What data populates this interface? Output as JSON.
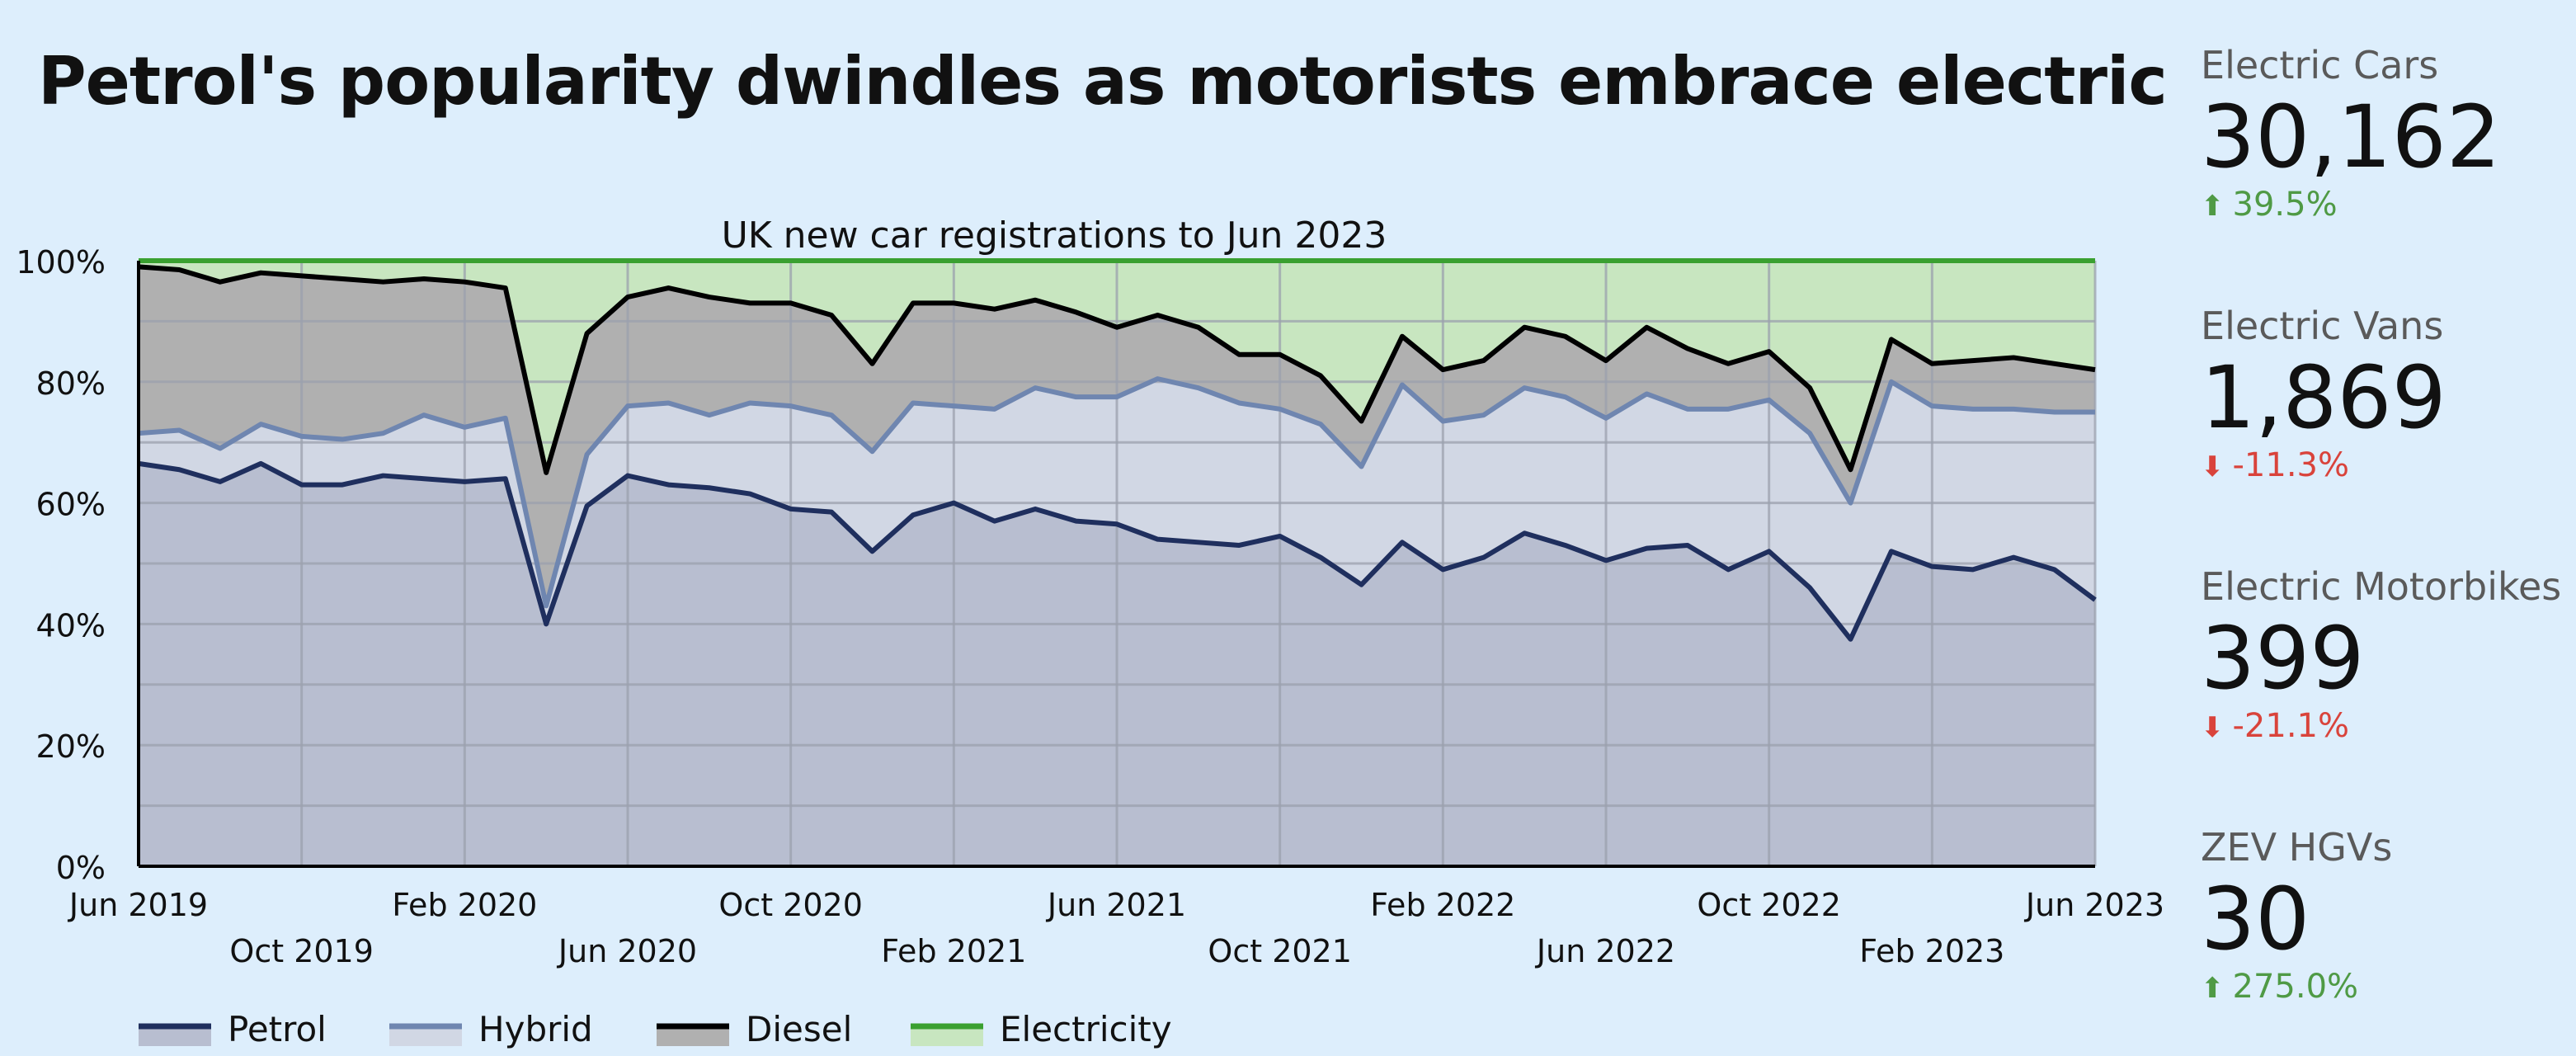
{
  "page": {
    "title": "Petrol's popularity dwindles as motorists embrace electric"
  },
  "colors": {
    "background": "#ddeefc",
    "petrol_line": "#1f2f5e",
    "petrol_fill": "#b8bed0",
    "hybrid_line": "#6f86b0",
    "hybrid_fill": "#d1d7e4",
    "diesel_line": "#000000",
    "diesel_fill": "#b0b0b0",
    "electricity_line": "#3aa030",
    "electricity_fill": "#c8e6c0",
    "grid": "#9ba0ad",
    "positive": "#4f9a45",
    "negative": "#d9433b"
  },
  "chart_data": {
    "type": "area",
    "stacked": true,
    "subtitle": "UK new car registrations to  Jun 2023",
    "x": [
      "Jun 2019",
      "Jul 2019",
      "Aug 2019",
      "Sep 2019",
      "Oct 2019",
      "Nov 2019",
      "Dec 2019",
      "Jan 2020",
      "Feb 2020",
      "Mar 2020",
      "Apr 2020",
      "May 2020",
      "Jun 2020",
      "Jul 2020",
      "Aug 2020",
      "Sep 2020",
      "Oct 2020",
      "Nov 2020",
      "Dec 2020",
      "Jan 2021",
      "Feb 2021",
      "Mar 2021",
      "Apr 2021",
      "May 2021",
      "Jun 2021",
      "Jul 2021",
      "Aug 2021",
      "Sep 2021",
      "Oct 2021",
      "Nov 2021",
      "Dec 2021",
      "Jan 2022",
      "Feb 2022",
      "Mar 2022",
      "Apr 2022",
      "May 2022",
      "Jun 2022",
      "Jul 2022",
      "Aug 2022",
      "Sep 2022",
      "Oct 2022",
      "Nov 2022",
      "Dec 2022",
      "Jan 2023",
      "Feb 2023",
      "Mar 2023",
      "Apr 2023",
      "May 2023",
      "Jun 2023"
    ],
    "x_tick_labels_row1": [
      "Jun 2019",
      "Feb 2020",
      "Oct 2020",
      "Jun 2021",
      "Feb 2022",
      "Oct 2022",
      "Jun 2023"
    ],
    "x_tick_labels_row2": [
      "Oct 2019",
      "Jun 2020",
      "Feb 2021",
      "Oct 2021",
      "Jun 2022",
      "Feb 2023"
    ],
    "y_ticks": [
      "0%",
      "20%",
      "40%",
      "60%",
      "80%",
      "100%"
    ],
    "ylim": [
      0,
      100
    ],
    "grid": true,
    "legend_position": "bottom-left",
    "series": [
      {
        "name": "Petrol",
        "values": [
          66.5,
          65.5,
          63.5,
          66.5,
          63,
          63,
          64.5,
          64,
          63.5,
          64,
          40,
          59.5,
          64.5,
          63,
          62.5,
          61.5,
          59,
          58.5,
          52,
          58,
          60,
          57,
          59,
          57,
          56.5,
          54,
          53.5,
          53,
          54.5,
          51,
          46.5,
          53.5,
          49,
          51,
          55,
          53,
          50.5,
          52.5,
          53,
          49,
          52,
          46,
          37.5,
          52,
          49.5,
          49,
          51,
          49,
          44
        ]
      },
      {
        "name": "Hybrid",
        "values": [
          71.5,
          72,
          69,
          73,
          71,
          70.5,
          71.5,
          74.5,
          72.5,
          74,
          43,
          68,
          76,
          76.5,
          74.5,
          76.5,
          76,
          74.5,
          68.5,
          76.5,
          76,
          75.5,
          79,
          77.5,
          77.5,
          80.5,
          79,
          76.5,
          75.5,
          73,
          66,
          79.5,
          73.5,
          74.5,
          79,
          77.5,
          74,
          78,
          75.5,
          75.5,
          77,
          71.5,
          60,
          80,
          76,
          75.5,
          75.5,
          75,
          75
        ]
      },
      {
        "name": "Diesel",
        "values": [
          99,
          98.5,
          96.5,
          98,
          97.5,
          97,
          96.5,
          97,
          96.5,
          95.5,
          65,
          88,
          94,
          95.5,
          94,
          93,
          93,
          91,
          83,
          93,
          93,
          92,
          93.5,
          91.5,
          89,
          91,
          89,
          84.5,
          84.5,
          81,
          73.5,
          87.5,
          82,
          83.5,
          89,
          87.5,
          83.5,
          89,
          85.5,
          83,
          85,
          79,
          65.5,
          87,
          83,
          83.5,
          84,
          83,
          82
        ]
      },
      {
        "name": "Electricity",
        "values": [
          100,
          100,
          100,
          100,
          100,
          100,
          100,
          100,
          100,
          100,
          100,
          100,
          100,
          100,
          100,
          100,
          100,
          100,
          100,
          100,
          100,
          100,
          100,
          100,
          100,
          100,
          100,
          100,
          100,
          100,
          100,
          100,
          100,
          100,
          100,
          100,
          100,
          100,
          100,
          100,
          100,
          100,
          100,
          100,
          100,
          100,
          100,
          100,
          100
        ]
      }
    ]
  },
  "kpis": [
    {
      "label": "Electric Cars",
      "value": "30,162",
      "change": "39.5%",
      "direction": "up",
      "arrow_icon": "arrow-up-icon"
    },
    {
      "label": "Electric Vans",
      "value": "1,869",
      "change": "-11.3%",
      "direction": "down",
      "arrow_icon": "arrow-down-icon"
    },
    {
      "label": "Electric Motorbikes",
      "value": "399",
      "change": "-21.1%",
      "direction": "down",
      "arrow_icon": "arrow-down-icon"
    },
    {
      "label": "ZEV HGVs",
      "value": "30",
      "change": "275.0%",
      "direction": "up",
      "arrow_icon": "arrow-up-icon"
    }
  ]
}
